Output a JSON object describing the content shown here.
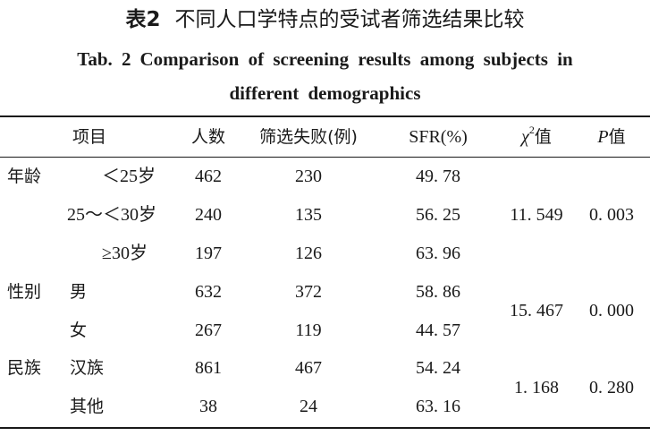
{
  "title": {
    "zh_number": "表2",
    "zh_text": "不同人口学特点的受试者筛选结果比较",
    "en_number": "Tab. 2",
    "en_line1": "Comparison of screening results among subjects in",
    "en_line2": "different demographics"
  },
  "table": {
    "headers": {
      "item": "项目",
      "count": "人数",
      "failed": "筛选失败(例)",
      "sfr": "SFR(%)",
      "chi_symbol": "χ",
      "chi_sup": "2",
      "chi_suffix": "值",
      "p_symbol": "P",
      "p_suffix": "值"
    },
    "groups": [
      {
        "label": "年龄",
        "chi2": "11. 549",
        "p": "0. 003",
        "rows": [
          {
            "sub": "＜25岁",
            "count": "462",
            "failed": "230",
            "sfr": "49. 78"
          },
          {
            "sub": "25～＜30岁",
            "count": "240",
            "failed": "135",
            "sfr": "56. 25"
          },
          {
            "sub": "≥30岁",
            "count": "197",
            "failed": "126",
            "sfr": "63. 96"
          }
        ]
      },
      {
        "label": "性别",
        "chi2": "15. 467",
        "p": "0. 000",
        "rows": [
          {
            "sub": "男",
            "count": "632",
            "failed": "372",
            "sfr": "58. 86"
          },
          {
            "sub": "女",
            "count": "267",
            "failed": "119",
            "sfr": "44. 57"
          }
        ]
      },
      {
        "label": "民族",
        "chi2": "1. 168",
        "p": "0. 280",
        "rows": [
          {
            "sub": "汉族",
            "count": "861",
            "failed": "467",
            "sfr": "54. 24"
          },
          {
            "sub": "其他",
            "count": "38",
            "failed": "24",
            "sfr": "63. 16"
          }
        ]
      }
    ]
  }
}
